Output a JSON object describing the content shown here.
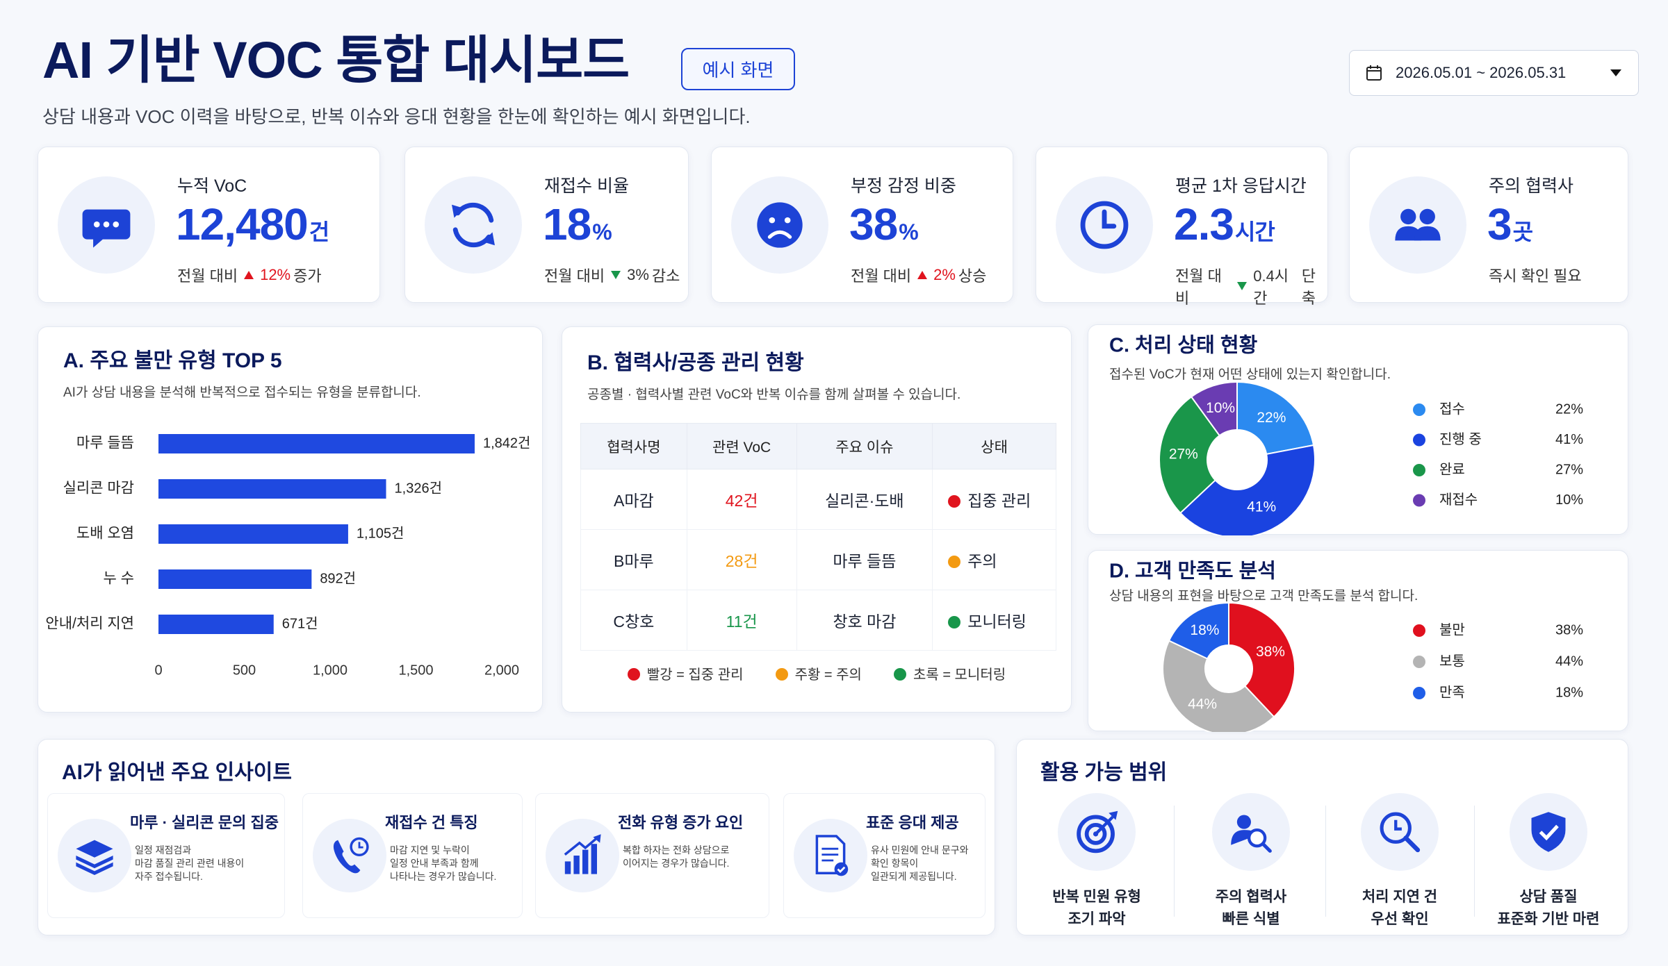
{
  "header": {
    "title": "AI 기반 VOC 통합 대시보드",
    "badge": "예시 화면",
    "subtitle": "상담 내용과 VOC 이력을 바탕으로, 반복 이슈와 응대 현황을 한눈에 확인하는 예시 화면입니다.",
    "date_range": "2026.05.01 ~ 2026.05.31"
  },
  "kpis": [
    {
      "label": "누적 VoC",
      "value": "12,480",
      "unit": "건",
      "note": "전월 대비",
      "change": "12%",
      "change_text": "증가",
      "direction": "up"
    },
    {
      "label": "재접수 비율",
      "value": "18",
      "unit": "%",
      "note": "전월 대비",
      "change": "3%",
      "change_text": "감소",
      "direction": "down"
    },
    {
      "label": "부정 감정 비중",
      "value": "38",
      "unit": "%",
      "note": "전월 대비",
      "change": "2%",
      "change_text": "상승",
      "direction": "up"
    },
    {
      "label": "평균 1차 응답시간",
      "value": "2.3",
      "unit": "시간",
      "note": "전월 대비",
      "change": "0.4시간",
      "change_text": "단축",
      "direction": "down"
    },
    {
      "label": "주의 협력사",
      "value": "3",
      "unit": "곳",
      "note": "즉시 확인 필요"
    }
  ],
  "partners": {
    "title": "B. 협력사/공종 관리 현황",
    "subtitle": "공종별 · 협력사별 관련 VoC와 반복 이슈를 함께 살펴볼 수 있습니다.",
    "columns": [
      "협력사명",
      "관련 VoC",
      "주요 이슈",
      "상태"
    ],
    "rows": [
      {
        "name": "A마감",
        "voc": "42건",
        "issue": "실리콘·도배",
        "status": "집중 관리",
        "color": "#e0141e"
      },
      {
        "name": "B마루",
        "voc": "28건",
        "issue": "마루 들뜸",
        "status": "주의",
        "color": "#f39a12"
      },
      {
        "name": "C창호",
        "voc": "11건",
        "issue": "창호 마감",
        "status": "모니터링",
        "color": "#18964a"
      }
    ],
    "legend": [
      {
        "label": "빨강 = 집중 관리",
        "color": "#e0141e"
      },
      {
        "label": "주황 = 주의",
        "color": "#f39a12"
      },
      {
        "label": "초록 = 모니터링",
        "color": "#18964a"
      }
    ]
  },
  "chart_data": [
    {
      "type": "bar",
      "orientation": "horizontal",
      "title": "A. 주요 불만 유형 TOP 5",
      "subtitle": "AI가 상담 내용을 분석해 반복적으로 접수되는 유형을 분류합니다.",
      "categories": [
        "마루 들뜸",
        "실리콘 마감",
        "도배 오염",
        "누 수",
        "안내/처리 지연"
      ],
      "values": [
        1842,
        1326,
        1105,
        892,
        671
      ],
      "value_labels": [
        "1,842건",
        "1,326건",
        "1,105건",
        "892건",
        "671건"
      ],
      "color": "#1f49e0",
      "xlim": [
        0,
        2000
      ],
      "xticks": [
        0,
        500,
        {
          "value": 1000,
          "label": "1,000"
        },
        {
          "value": 1500,
          "label": "1,500"
        },
        {
          "value": 2000,
          "label": "2,000"
        }
      ]
    },
    {
      "type": "pie",
      "donut": true,
      "title": "C. 처리 상태 현황",
      "subtitle": "접수된 VoC가 현재 어떤 상태에 있는지 확인합니다.",
      "categories": [
        "접수",
        "진행 중",
        "완료",
        "재접수"
      ],
      "values": [
        22,
        41,
        27,
        10
      ],
      "value_labels": [
        "22%",
        "41%",
        "27%",
        "10%"
      ],
      "colors": [
        "#2b8af0",
        "#1a43e0",
        "#1a964a",
        "#6a3cb2"
      ]
    },
    {
      "type": "pie",
      "donut": true,
      "title": "D. 고객 만족도 분석",
      "subtitle": "상담 내용의 표현을 바탕으로 고객 만족도를 분석 합니다.",
      "categories": [
        "불만",
        "보통",
        "만족"
      ],
      "values": [
        38,
        44,
        18
      ],
      "value_labels": [
        "38%",
        "44%",
        "18%"
      ],
      "colors": [
        "#e0101e",
        "#b4b4b4",
        "#1f5ee8"
      ]
    }
  ],
  "insights": {
    "title": "AI가 읽어낸 주요 인사이트",
    "items": [
      {
        "title": "마루 · 실리콘 문의 집중",
        "lines": [
          "일정 재점검과",
          "마감 품질 관리 관련 내용이",
          "자주 접수됩니다."
        ]
      },
      {
        "title": "재접수 건 특징",
        "lines": [
          "마감 지연 및 누락이",
          "일정 안내 부족과 함께",
          "나타나는 경우가 많습니다."
        ]
      },
      {
        "title": "전화 유형 증가 요인",
        "lines": [
          "복합 하자는 전화 상담으로",
          "이어지는 경우가 많습니다."
        ]
      },
      {
        "title": "표준 응대 제공",
        "lines": [
          "유사 민원에 안내 문구와",
          "확인 항목이",
          "일관되게 제공됩니다."
        ]
      }
    ]
  },
  "scope": {
    "title": "활용 가능 범위",
    "items": [
      {
        "lines": [
          "반복 민원 유형",
          "조기 파악"
        ]
      },
      {
        "lines": [
          "주의 협력사",
          "빠른 식별"
        ]
      },
      {
        "lines": [
          "처리 지연 건",
          "우선 확인"
        ]
      },
      {
        "lines": [
          "상담 품질",
          "표준화 기반 마련"
        ]
      }
    ]
  }
}
